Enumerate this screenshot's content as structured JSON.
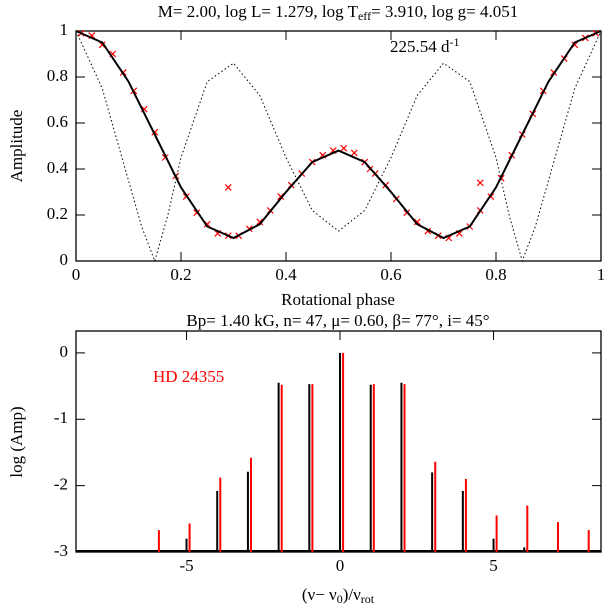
{
  "chart_data": [
    {
      "type": "line",
      "title": [
        "M= 2.00, log L= 1.279, log T",
        "eff",
        "= 3.910, log g= 4.051"
      ],
      "annotation": [
        "225.54 d",
        "-1"
      ],
      "xlabel": "Rotational phase",
      "ylabel": "Amplitude",
      "xlim": [
        0,
        1
      ],
      "ylim": [
        0,
        1
      ],
      "xticks": [
        0,
        0.2,
        0.4,
        0.6,
        0.8,
        1
      ],
      "yticks": [
        0,
        0.2,
        0.4,
        0.6,
        0.8,
        1
      ],
      "series": [
        {
          "style": "cross",
          "color": "#ff0000",
          "x": [
            0.01,
            0.03,
            0.05,
            0.07,
            0.09,
            0.11,
            0.13,
            0.15,
            0.17,
            0.19,
            0.21,
            0.23,
            0.25,
            0.27,
            0.29,
            0.31,
            0.33,
            0.35,
            0.37,
            0.39,
            0.41,
            0.43,
            0.45,
            0.47,
            0.49,
            0.51,
            0.53,
            0.55,
            0.57,
            0.59,
            0.61,
            0.63,
            0.65,
            0.67,
            0.69,
            0.71,
            0.73,
            0.75,
            0.77,
            0.79,
            0.81,
            0.83,
            0.85,
            0.87,
            0.89,
            0.91,
            0.93,
            0.95,
            0.97,
            0.99,
            0.29,
            0.77,
            0.56
          ],
          "values": [
            0.99,
            0.98,
            0.94,
            0.9,
            0.82,
            0.74,
            0.66,
            0.56,
            0.45,
            0.37,
            0.28,
            0.21,
            0.16,
            0.12,
            0.11,
            0.11,
            0.14,
            0.17,
            0.22,
            0.28,
            0.33,
            0.38,
            0.43,
            0.46,
            0.48,
            0.49,
            0.47,
            0.43,
            0.38,
            0.33,
            0.27,
            0.21,
            0.17,
            0.13,
            0.11,
            0.1,
            0.12,
            0.15,
            0.22,
            0.28,
            0.36,
            0.46,
            0.55,
            0.64,
            0.74,
            0.82,
            0.88,
            0.94,
            0.97,
            0.99,
            0.32,
            0.34,
            0.4
          ]
        },
        {
          "style": "dotted",
          "color": "#000000",
          "x": [
            0,
            0.05,
            0.1,
            0.125,
            0.15,
            0.175,
            0.2,
            0.25,
            0.3,
            0.35,
            0.4,
            0.45,
            0.5,
            0.55,
            0.6,
            0.65,
            0.7,
            0.75,
            0.8,
            0.825,
            0.85,
            0.875,
            0.9,
            0.95,
            1
          ],
          "values": [
            1,
            0.75,
            0.35,
            0.15,
            0,
            0.2,
            0.45,
            0.78,
            0.86,
            0.72,
            0.45,
            0.22,
            0.13,
            0.22,
            0.45,
            0.72,
            0.86,
            0.78,
            0.45,
            0.2,
            0,
            0.15,
            0.35,
            0.75,
            1
          ]
        },
        {
          "style": "solid",
          "color": "#000000",
          "x": [
            0,
            0.05,
            0.1,
            0.15,
            0.2,
            0.25,
            0.3,
            0.35,
            0.4,
            0.45,
            0.5,
            0.55,
            0.6,
            0.65,
            0.7,
            0.75,
            0.8,
            0.85,
            0.9,
            0.95,
            1
          ],
          "values": [
            1,
            0.95,
            0.78,
            0.55,
            0.32,
            0.15,
            0.1,
            0.16,
            0.3,
            0.43,
            0.48,
            0.43,
            0.3,
            0.16,
            0.1,
            0.15,
            0.32,
            0.55,
            0.78,
            0.95,
            1
          ]
        }
      ]
    },
    {
      "type": "bar",
      "title": "Bp= 1.40 kG,  n= 47,  μ= 0.60, β= 77°, i= 45°",
      "annotation": "HD 24355",
      "xlabel": [
        "(ν− ν",
        "0",
        ")/ν",
        "rot"
      ],
      "ylabel": "log (Amp)",
      "xlim": [
        -8.6,
        8.5
      ],
      "ylim": [
        -3,
        0.33
      ],
      "xticks": [
        -5,
        0,
        5
      ],
      "yticks": [
        0,
        -1,
        -2,
        -3
      ],
      "series": [
        {
          "color": "#000000",
          "x": [
            -5,
            -4,
            -3,
            -2,
            -1,
            0,
            1,
            2,
            3,
            4,
            5,
            6
          ],
          "values": [
            -2.8,
            -2.08,
            -1.79,
            -0.45,
            -0.47,
            0,
            -0.48,
            -0.45,
            -1.8,
            -2.08,
            -2.8,
            -2.93
          ]
        },
        {
          "color": "#ff0000",
          "x": [
            -5.9,
            -4.9,
            -3.9,
            -2.9,
            -1.9,
            -0.9,
            0.1,
            1.1,
            2.1,
            3.1,
            4.1,
            5.1,
            6.1,
            7.1,
            8.1
          ],
          "values": [
            -2.67,
            -2.57,
            -1.88,
            -1.58,
            -0.48,
            -0.47,
            0,
            -0.47,
            -0.47,
            -1.64,
            -1.9,
            -2.45,
            -2.3,
            -2.55,
            -2.67
          ]
        }
      ]
    }
  ]
}
